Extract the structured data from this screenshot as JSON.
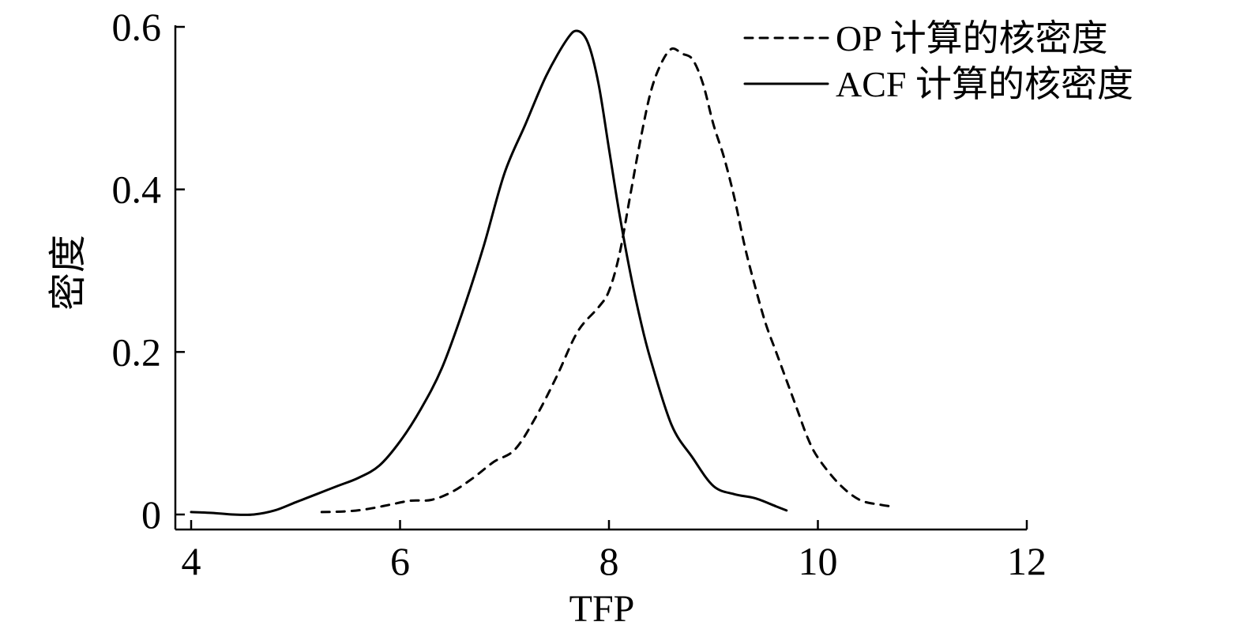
{
  "chart_data": {
    "type": "line",
    "title": "",
    "xlabel": "TFP",
    "ylabel": "密度",
    "xlim": [
      4,
      12
    ],
    "ylim": [
      0,
      0.6
    ],
    "x_ticks": [
      4,
      6,
      8,
      10,
      12
    ],
    "x_tick_labels": [
      "4",
      "6",
      "8",
      "10",
      "12"
    ],
    "y_ticks": [
      0,
      0.2,
      0.4,
      0.6
    ],
    "y_tick_labels": [
      "0",
      "0.2",
      "0.4",
      "0.6"
    ],
    "grid": false,
    "legend_position": "top-right",
    "series": [
      {
        "name": "OP 计算的核密度",
        "style": "dashed",
        "color": "#000000",
        "x": [
          5.25,
          5.5,
          5.7,
          5.9,
          6.1,
          6.3,
          6.5,
          6.7,
          6.9,
          7.1,
          7.3,
          7.5,
          7.7,
          7.9,
          8.0,
          8.1,
          8.2,
          8.3,
          8.4,
          8.5,
          8.6,
          8.7,
          8.8,
          8.9,
          9.0,
          9.1,
          9.2,
          9.3,
          9.4,
          9.5,
          9.6,
          9.7,
          9.8,
          9.9,
          10.0,
          10.2,
          10.4,
          10.6,
          10.7
        ],
        "y": [
          0.003,
          0.004,
          0.007,
          0.012,
          0.017,
          0.018,
          0.028,
          0.045,
          0.065,
          0.08,
          0.12,
          0.17,
          0.225,
          0.255,
          0.275,
          0.32,
          0.39,
          0.46,
          0.52,
          0.555,
          0.573,
          0.567,
          0.56,
          0.53,
          0.48,
          0.44,
          0.39,
          0.33,
          0.28,
          0.235,
          0.2,
          0.165,
          0.13,
          0.095,
          0.07,
          0.038,
          0.018,
          0.012,
          0.01
        ]
      },
      {
        "name": "ACF 计算的核密度",
        "style": "solid",
        "color": "#000000",
        "x": [
          4.0,
          4.2,
          4.4,
          4.6,
          4.8,
          5.0,
          5.2,
          5.4,
          5.6,
          5.8,
          6.0,
          6.2,
          6.4,
          6.6,
          6.8,
          7.0,
          7.2,
          7.4,
          7.6,
          7.7,
          7.8,
          7.9,
          8.0,
          8.1,
          8.2,
          8.3,
          8.4,
          8.6,
          8.8,
          9.0,
          9.2,
          9.4,
          9.6,
          9.7
        ],
        "y": [
          0.003,
          0.002,
          0.0,
          0.0,
          0.005,
          0.015,
          0.025,
          0.035,
          0.045,
          0.06,
          0.09,
          0.13,
          0.18,
          0.25,
          0.33,
          0.42,
          0.48,
          0.54,
          0.585,
          0.595,
          0.58,
          0.53,
          0.45,
          0.37,
          0.3,
          0.24,
          0.19,
          0.11,
          0.07,
          0.035,
          0.025,
          0.02,
          0.01,
          0.005
        ]
      }
    ]
  }
}
